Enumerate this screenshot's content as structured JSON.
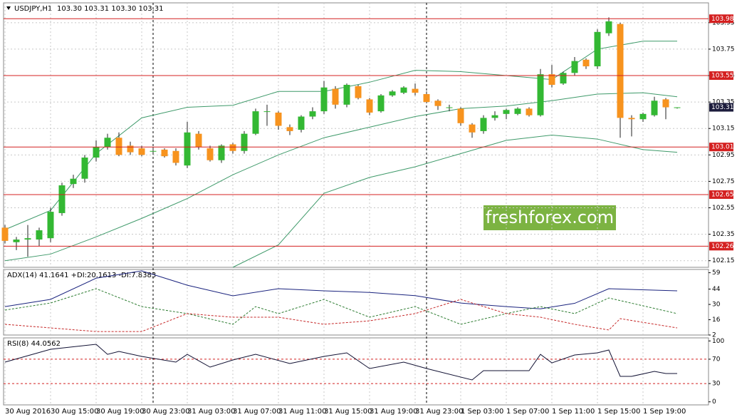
{
  "chart_data": [
    {
      "type": "candlestick",
      "title": "USDJPY,H1",
      "quote": "103.30 103.31 103.30 103.31",
      "categories": [
        "30 Aug 2016",
        null,
        null,
        null,
        "30 Aug 15:00",
        null,
        null,
        null,
        "30 Aug 19:00",
        null,
        null,
        null,
        "30 Aug 23:00",
        null,
        null,
        null,
        "31 Aug 03:00",
        null,
        null,
        null,
        "31 Aug 07:00",
        null,
        null,
        null,
        "31 Aug 11:00",
        null,
        null,
        null,
        "31 Aug 15:00",
        null,
        null,
        null,
        "31 Aug 19:00",
        null,
        null,
        null,
        "31 Aug 23:00",
        null,
        null,
        null,
        "1 Sep 03:00",
        null,
        null,
        null,
        "1 Sep 07:00",
        null,
        null,
        null,
        "1 Sep 11:00",
        null,
        null,
        null,
        "1 Sep 15:00",
        null,
        null,
        null,
        "1 Sep 19:00",
        null,
        null,
        null
      ],
      "open": [
        102.4,
        102.29,
        102.31,
        102.31,
        102.32,
        102.51,
        102.73,
        102.77,
        102.93,
        103.01,
        103.08,
        103.02,
        103.0,
        102.98,
        102.99,
        102.98,
        102.87,
        103.11,
        103.0,
        102.91,
        103.03,
        102.98,
        103.11,
        103.28,
        103.27,
        103.16,
        103.14,
        103.24,
        103.28,
        103.45,
        103.33,
        103.47,
        103.37,
        103.28,
        103.4,
        103.42,
        103.45,
        103.41,
        103.36,
        103.31,
        103.3,
        103.18,
        103.13,
        103.23,
        103.26,
        103.26,
        103.3,
        103.25,
        103.56,
        103.49,
        103.57,
        103.67,
        103.62,
        103.87,
        103.94,
        103.23,
        103.22,
        103.25,
        103.37,
        103.31
      ],
      "high": [
        102.42,
        102.33,
        102.42,
        102.4,
        102.55,
        102.74,
        102.8,
        102.95,
        103.06,
        103.11,
        103.12,
        103.05,
        103.02,
        103.01,
        103.0,
        103.0,
        103.2,
        103.13,
        103.02,
        103.03,
        103.04,
        103.13,
        103.3,
        103.33,
        103.28,
        103.18,
        103.25,
        103.31,
        103.51,
        103.47,
        103.49,
        103.48,
        103.38,
        103.41,
        103.44,
        103.47,
        103.49,
        103.43,
        103.37,
        103.33,
        103.31,
        103.19,
        103.25,
        103.28,
        103.3,
        103.31,
        103.31,
        103.6,
        103.63,
        103.58,
        103.69,
        103.68,
        103.9,
        103.99,
        103.95,
        103.25,
        103.27,
        103.39,
        103.38,
        103.31
      ],
      "low": [
        102.28,
        102.23,
        102.18,
        102.26,
        102.29,
        102.49,
        102.7,
        102.74,
        102.9,
        102.99,
        102.94,
        102.95,
        102.94,
        102.96,
        102.93,
        102.87,
        102.85,
        102.99,
        102.9,
        102.89,
        102.96,
        102.96,
        103.1,
        103.17,
        103.14,
        103.1,
        103.12,
        103.22,
        103.26,
        103.3,
        103.31,
        103.37,
        103.25,
        103.27,
        103.39,
        103.41,
        103.4,
        103.34,
        103.29,
        103.28,
        103.17,
        103.08,
        103.11,
        103.21,
        103.22,
        103.25,
        103.24,
        103.24,
        103.46,
        103.48,
        103.55,
        103.6,
        103.6,
        103.85,
        103.08,
        103.09,
        103.2,
        103.24,
        103.22,
        103.3
      ],
      "close": [
        102.3,
        102.31,
        102.32,
        102.38,
        102.52,
        102.72,
        102.77,
        102.93,
        103.01,
        103.08,
        102.95,
        102.97,
        102.95,
        102.98,
        102.94,
        102.89,
        103.12,
        103.01,
        102.91,
        103.02,
        102.98,
        103.11,
        103.28,
        103.28,
        103.17,
        103.13,
        103.24,
        103.28,
        103.46,
        103.33,
        103.48,
        103.38,
        103.27,
        103.4,
        103.43,
        103.46,
        103.42,
        103.35,
        103.32,
        103.31,
        103.19,
        103.12,
        103.23,
        103.25,
        103.29,
        103.3,
        103.25,
        103.56,
        103.48,
        103.57,
        103.66,
        103.62,
        103.88,
        103.96,
        103.23,
        103.22,
        103.26,
        103.36,
        103.31,
        103.31
      ],
      "up_color": "#33b833",
      "down_color": "#f7931e",
      "ylim": [
        102.1,
        104.1
      ],
      "yticks": [
        103.95,
        103.75,
        103.55,
        103.35,
        103.15,
        102.95,
        102.75,
        102.55,
        102.35,
        102.15
      ],
      "grid": true,
      "day_separators": [
        13,
        37
      ],
      "bands": [
        {
          "color": "#3f9a6a",
          "x": [
            0,
            4,
            8,
            12,
            16,
            20,
            24,
            28,
            32,
            36,
            40,
            44,
            48,
            52,
            56,
            59
          ],
          "values": [
            102.385,
            102.53,
            102.96,
            103.23,
            103.31,
            103.325,
            103.43,
            103.43,
            103.5,
            103.59,
            103.58,
            103.55,
            103.52,
            103.75,
            103.81,
            103.81
          ]
        },
        {
          "color": "#3f9a6a",
          "x": [
            0,
            4,
            8,
            12,
            16,
            20,
            24,
            28,
            32,
            36,
            40,
            44,
            48,
            52,
            56,
            59
          ],
          "values": [
            102.15,
            102.2,
            102.33,
            102.47,
            102.62,
            102.8,
            102.95,
            103.08,
            103.16,
            103.24,
            103.3,
            103.32,
            103.36,
            103.41,
            103.42,
            103.39
          ]
        },
        {
          "color": "#3f9a6a",
          "x": [
            20,
            24,
            28,
            32,
            36,
            40,
            44,
            48,
            52,
            56,
            59
          ],
          "values": [
            102.1,
            102.27,
            102.66,
            102.78,
            102.86,
            102.96,
            103.06,
            103.1,
            103.07,
            102.99,
            102.97
          ]
        }
      ],
      "levels": {
        "color": "#d42020",
        "values": [
          103.98,
          103.55,
          103.01,
          102.65,
          102.26
        ]
      },
      "last_price": 103.31,
      "watermark": "freshforex.com"
    },
    {
      "type": "line",
      "title": "ADX(14) 41.1641 +DI:20.1613 -DI:7.8383",
      "ylim": [
        2,
        62
      ],
      "yticks": [
        59,
        44,
        30,
        16,
        2
      ],
      "series": [
        {
          "color": "#1a237e",
          "dashed": false,
          "x": [
            0,
            4,
            8,
            12,
            16,
            20,
            24,
            28,
            32,
            36,
            40,
            44,
            47,
            50,
            53,
            59
          ],
          "values": [
            28,
            34.6,
            54,
            60.7,
            47.6,
            37.9,
            44.4,
            42.4,
            41,
            38,
            31.3,
            28,
            26,
            31,
            44.4,
            42.4
          ]
        },
        {
          "color": "#2e7d32",
          "dashed": true,
          "x": [
            0,
            4,
            8,
            12,
            16,
            20,
            22,
            24,
            28,
            32,
            36,
            40,
            44,
            47,
            50,
            53,
            59
          ],
          "values": [
            24.8,
            31.3,
            44.4,
            28,
            21.6,
            11.8,
            28,
            21.6,
            34.6,
            18.3,
            28,
            11.8,
            21.6,
            28,
            21.6,
            35.9,
            21.6
          ]
        },
        {
          "color": "#c62828",
          "dashed": true,
          "x": [
            0,
            4,
            8,
            12,
            16,
            20,
            24,
            28,
            32,
            36,
            40,
            44,
            47,
            50,
            53,
            54,
            59
          ],
          "values": [
            11.8,
            8.5,
            5.2,
            5.2,
            21.6,
            18.3,
            18.3,
            11.8,
            15,
            21.6,
            34.6,
            21.6,
            18.3,
            11.8,
            6.6,
            17,
            8.5
          ]
        }
      ]
    },
    {
      "type": "line",
      "title": "RSI(8) 44.0562",
      "ylim": [
        -5,
        105
      ],
      "yticks": [
        100,
        70,
        30,
        0
      ],
      "levels": {
        "color": "#d42020",
        "values": [
          70,
          30
        ]
      },
      "series": [
        {
          "color": "#111133",
          "dashed": false,
          "x": [
            0,
            4,
            8,
            9,
            10,
            12,
            15,
            16,
            18,
            20,
            22,
            25,
            28,
            30,
            32,
            35,
            37,
            41,
            42,
            46,
            47,
            48,
            50,
            52,
            53,
            54,
            55,
            57,
            58,
            59
          ],
          "values": [
            65.2,
            86.3,
            94.5,
            78,
            82.8,
            74.6,
            65.2,
            78,
            57,
            68.7,
            78,
            62.9,
            74.6,
            80.4,
            54.7,
            65.2,
            54.7,
            36,
            51.2,
            51.2,
            78,
            64,
            76.9,
            80.4,
            85.1,
            41.8,
            41.8,
            50,
            46.5,
            46.5
          ]
        }
      ]
    }
  ]
}
